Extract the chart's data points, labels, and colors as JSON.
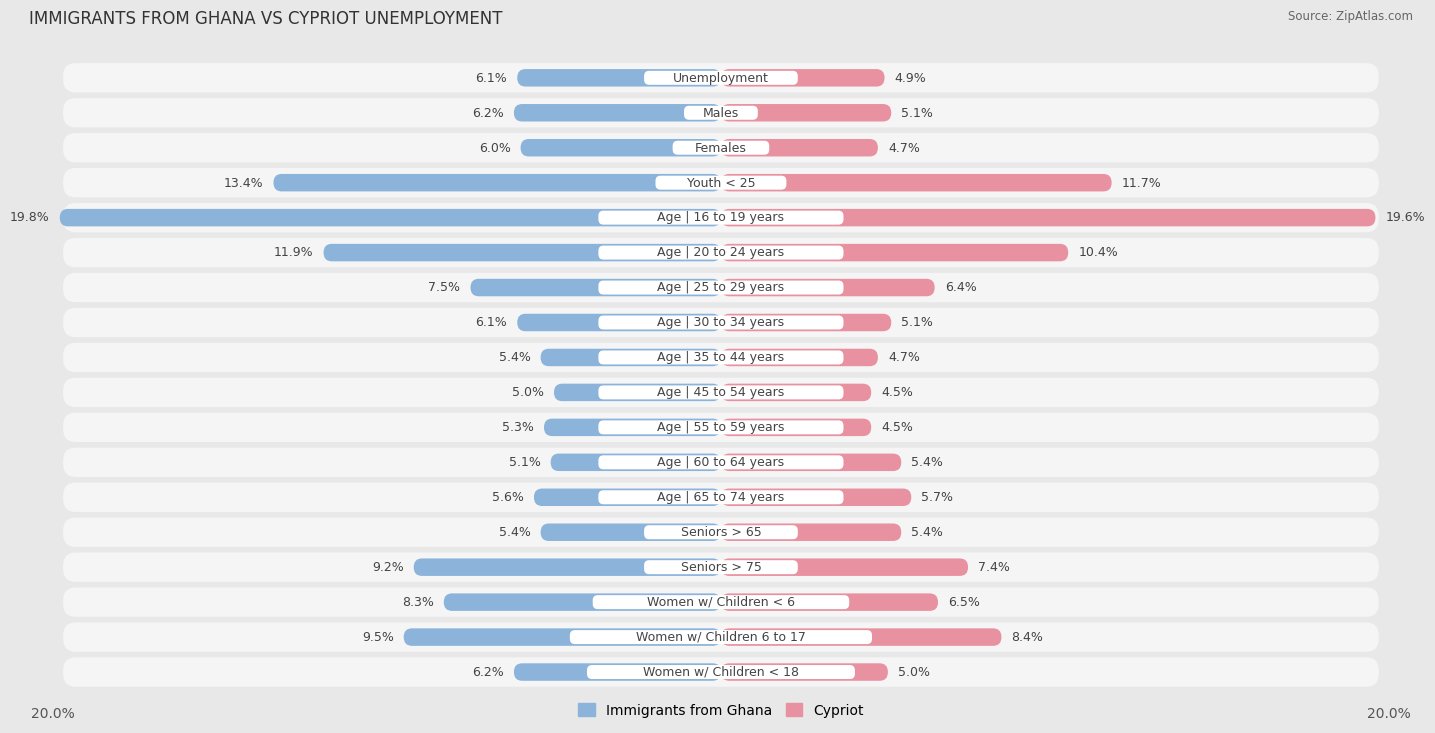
{
  "title": "IMMIGRANTS FROM GHANA VS CYPRIOT UNEMPLOYMENT",
  "source": "Source: ZipAtlas.com",
  "categories": [
    "Unemployment",
    "Males",
    "Females",
    "Youth < 25",
    "Age | 16 to 19 years",
    "Age | 20 to 24 years",
    "Age | 25 to 29 years",
    "Age | 30 to 34 years",
    "Age | 35 to 44 years",
    "Age | 45 to 54 years",
    "Age | 55 to 59 years",
    "Age | 60 to 64 years",
    "Age | 65 to 74 years",
    "Seniors > 65",
    "Seniors > 75",
    "Women w/ Children < 6",
    "Women w/ Children 6 to 17",
    "Women w/ Children < 18"
  ],
  "ghana_values": [
    6.1,
    6.2,
    6.0,
    13.4,
    19.8,
    11.9,
    7.5,
    6.1,
    5.4,
    5.0,
    5.3,
    5.1,
    5.6,
    5.4,
    9.2,
    8.3,
    9.5,
    6.2
  ],
  "cypriot_values": [
    4.9,
    5.1,
    4.7,
    11.7,
    19.6,
    10.4,
    6.4,
    5.1,
    4.7,
    4.5,
    4.5,
    5.4,
    5.7,
    5.4,
    7.4,
    6.5,
    8.4,
    5.0
  ],
  "ghana_color": "#8cb3d9",
  "cypriot_color": "#e891a0",
  "background_color": "#e8e8e8",
  "row_bg_color": "#f5f5f5",
  "row_alt_color": "#ebebeb",
  "axis_limit": 20.0,
  "bar_height": 0.5,
  "label_fontsize": 9.0,
  "title_fontsize": 12,
  "legend_ghana": "Immigrants from Ghana",
  "legend_cypriot": "Cypriot"
}
